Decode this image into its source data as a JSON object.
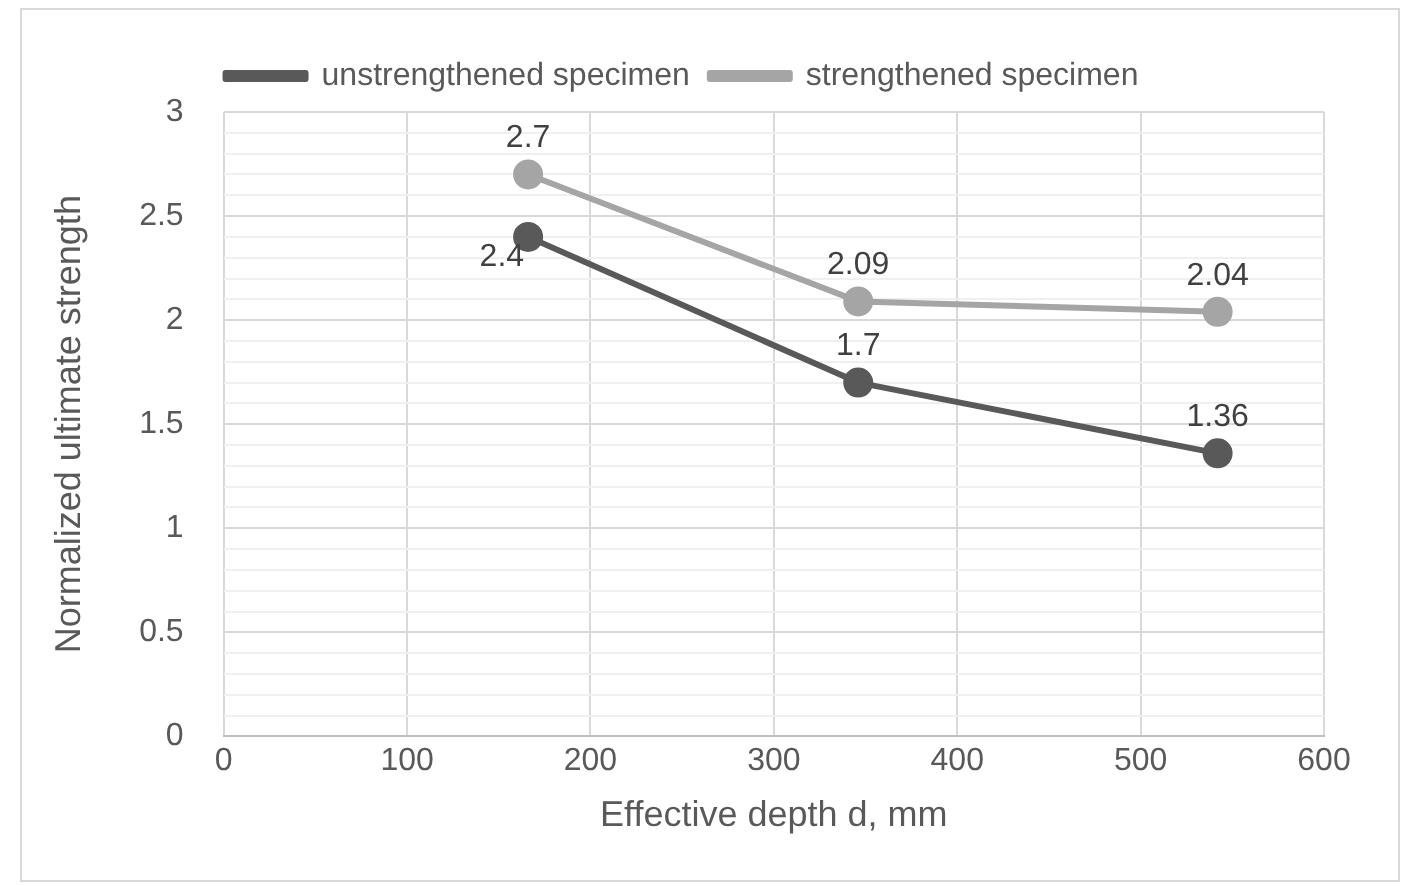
{
  "chart_data": {
    "type": "line",
    "xlabel": "Effective depth d, mm",
    "ylabel": "Normalized ultimate strength",
    "series": [
      {
        "name": "unstrengthened specimen",
        "color": "#595959",
        "x": [
          166,
          346,
          542
        ],
        "values": [
          2.4,
          1.7,
          1.36
        ]
      },
      {
        "name": "strengthened specimen",
        "color": "#a5a5a5",
        "x": [
          166,
          346,
          542
        ],
        "values": [
          2.7,
          2.09,
          2.04
        ]
      }
    ],
    "xlim": [
      0,
      600
    ],
    "xticks": [
      0,
      100,
      200,
      300,
      400,
      500,
      600
    ],
    "ylim": [
      0,
      3
    ],
    "yticks": [
      0,
      {
        "value": 0.1,
        "label": null
      },
      {
        "value": 0.2,
        "label": null
      },
      {
        "value": 0.3,
        "label": null
      },
      {
        "value": 0.4,
        "label": null
      },
      0.5,
      {
        "value": 0.6,
        "label": null
      },
      {
        "value": 0.7,
        "label": null
      },
      {
        "value": 0.8,
        "label": null
      },
      {
        "value": 0.9,
        "label": null
      },
      1,
      {
        "value": 1.1,
        "label": null
      },
      {
        "value": 1.2,
        "label": null
      },
      {
        "value": 1.3,
        "label": null
      },
      {
        "value": 1.4,
        "label": null
      },
      1.5,
      {
        "value": 1.6,
        "label": null
      },
      {
        "value": 1.7,
        "label": null
      },
      {
        "value": 1.8,
        "label": null
      },
      {
        "value": 1.9,
        "label": null
      },
      2,
      {
        "value": 2.1,
        "label": null
      },
      {
        "value": 2.2,
        "label": null
      },
      {
        "value": 2.3,
        "label": null
      },
      {
        "value": 2.4,
        "label": null
      },
      2.5,
      {
        "value": 2.6,
        "label": null
      },
      {
        "value": 2.7,
        "label": null
      },
      {
        "value": 2.8,
        "label": null
      },
      {
        "value": 2.9,
        "label": null
      },
      3
    ],
    "grid": true,
    "legend": "top",
    "marker": "circle",
    "line_style": "solid",
    "data_labels": true
  }
}
